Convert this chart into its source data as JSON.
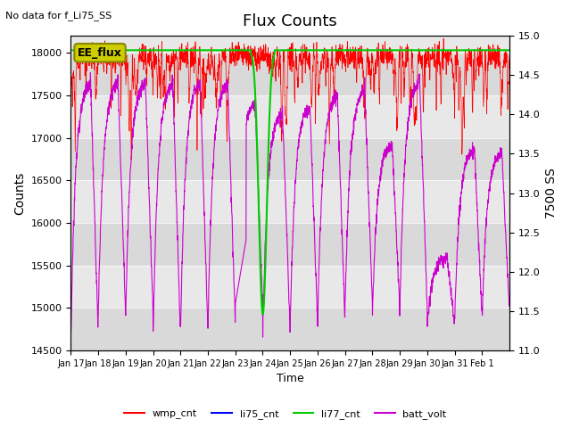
{
  "title": "Flux Counts",
  "no_data_label": "No data for f_Li75_SS",
  "ee_flux_label": "EE_flux",
  "xlabel": "Time",
  "ylabel_left": "Counts",
  "ylabel_right": "7500 SS",
  "ylim_left": [
    14500,
    18200
  ],
  "ylim_right": [
    11.0,
    15.0
  ],
  "yticks_left": [
    14500,
    15000,
    15500,
    16000,
    16500,
    17000,
    17500,
    18000
  ],
  "yticks_right": [
    11.0,
    11.5,
    12.0,
    12.5,
    13.0,
    13.5,
    14.0,
    14.5,
    15.0
  ],
  "xtick_labels": [
    "Jan 17",
    "Jan 18",
    "Jan 19",
    "Jan 20",
    "Jan 21",
    "Jan 22",
    "Jan 23",
    "Jan 24",
    "Jan 25",
    "Jan 26",
    "Jan 27",
    "Jan 28",
    "Jan 29",
    "Jan 30",
    "Jan 31",
    "Feb 1"
  ],
  "wmp_cnt_color": "#ff0000",
  "li75_cnt_color": "#0000ff",
  "li77_cnt_color": "#00cc00",
  "batt_volt_color": "#cc00cc",
  "ee_flux_box_facecolor": "#cccc00",
  "ee_flux_box_edgecolor": "#888800",
  "background_color": "#ffffff",
  "plot_bg_color": "#e8e8e8",
  "grid_band_color": "#d0d0d0",
  "wmp_cnt_level": 17950,
  "li77_cnt_level": 18030,
  "seed": 42,
  "legend_entries": [
    "wmp_cnt",
    "li75_cnt",
    "li77_cnt",
    "batt_volt"
  ]
}
